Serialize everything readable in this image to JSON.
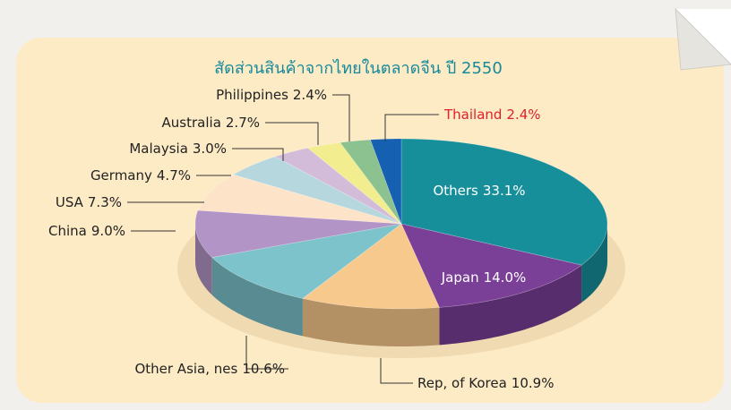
{
  "chart_data": {
    "type": "pie3d",
    "title": "สัดส่วนสินค้าจากไทยในตลาดจีน ปี 2550",
    "categories": [
      "Others",
      "Japan",
      "Rep, of Korea",
      "Other Asia, nes",
      "China",
      "USA",
      "Germany",
      "Malaysia",
      "Australia",
      "Philippines",
      "Thailand"
    ],
    "values": [
      33.1,
      14.0,
      10.9,
      10.6,
      9.0,
      7.3,
      4.7,
      3.0,
      2.7,
      2.4,
      2.4
    ],
    "value_labels": [
      "33.1%",
      "14.0%",
      "10.9%",
      "10.6%",
      "9.0%",
      "7.3%",
      "4.7%",
      "3.0%",
      "2.7%",
      "2.4%",
      "2.4%"
    ],
    "colors": [
      "#178f9b",
      "#7a3f97",
      "#f8c98c",
      "#7cc3cb",
      "#b294c7",
      "#fde3c8",
      "#b7d7df",
      "#d2bcd9",
      "#f2ed8e",
      "#8cc28f",
      "#1560b0"
    ],
    "label_colors": [
      "#ffffff",
      "#ffffff",
      "#222222",
      "#222222",
      "#222222",
      "#222222",
      "#222222",
      "#222222",
      "#222222",
      "#222222",
      "#e0202a"
    ]
  }
}
